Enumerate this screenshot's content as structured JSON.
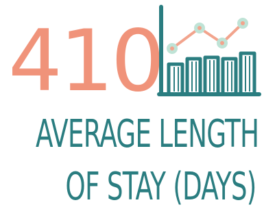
{
  "stat": {
    "value": "410"
  },
  "caption": {
    "line1": "AVERAGE LENGTH",
    "line2": "OF STAY (DAYS)"
  },
  "icon": {
    "name": "bar-and-line-chart-icon"
  },
  "colors": {
    "accent_salmon": "#f0937a",
    "accent_teal": "#2a7d80",
    "line_pink": "#f2a48d",
    "dot_mint": "#bfe3d6",
    "background": "#ffffff"
  }
}
